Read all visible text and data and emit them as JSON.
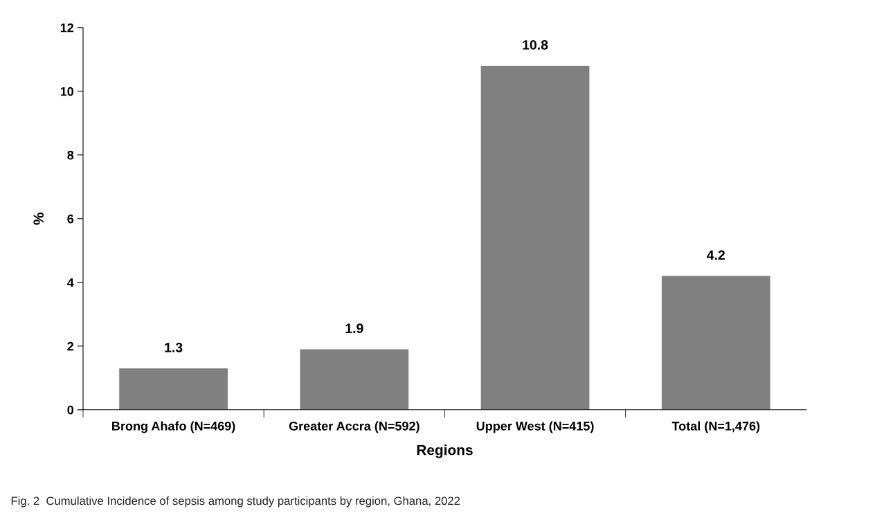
{
  "chart_data": {
    "type": "bar",
    "categories": [
      "Brong Ahafo (N=469)",
      "Greater Accra (N=592)",
      "Upper West (N=415)",
      "Total (N=1,476)"
    ],
    "values": [
      1.3,
      1.9,
      10.8,
      4.2
    ],
    "color": "#808080",
    "xlabel": "Regions",
    "ylabel": "%",
    "ylim": [
      0,
      12
    ],
    "yticks": [
      0,
      2,
      4,
      6,
      8,
      10,
      12
    ],
    "grid": false,
    "data_labels": true,
    "annotations": [
      "Fig. 2  Cumulative Incidence of sepsis among study participants by region, Ghana, 2022"
    ]
  }
}
